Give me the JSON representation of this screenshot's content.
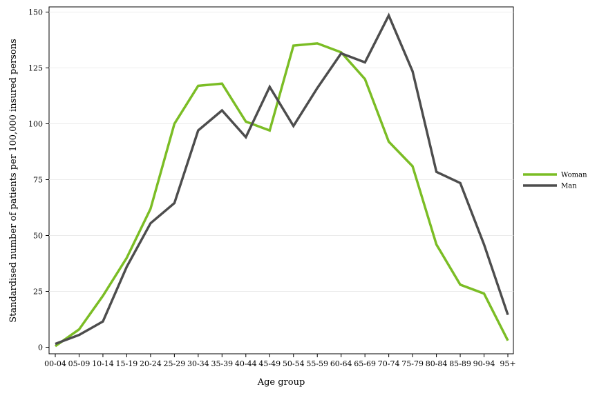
{
  "chart_data": {
    "type": "line",
    "title": "",
    "xlabel": "Age group",
    "ylabel": "Standardised number of patients per 100,000 insured persons",
    "categories": [
      "00-04",
      "05-09",
      "10-14",
      "15-19",
      "20-24",
      "25-29",
      "30-34",
      "35-39",
      "40-44",
      "45-49",
      "50-54",
      "55-59",
      "60-64",
      "65-69",
      "70-74",
      "75-79",
      "80-84",
      "85-89",
      "90-94",
      "95+"
    ],
    "ylim": [
      0,
      150
    ],
    "yticks": [
      0,
      25,
      50,
      75,
      100,
      125,
      150
    ],
    "grid": true,
    "legend_position": "right",
    "series": [
      {
        "name": "Woman",
        "color": "#7bbd25",
        "values": [
          0.5,
          8,
          23,
          40,
          62,
          100,
          117,
          118,
          101,
          97,
          135,
          136,
          132,
          120,
          92,
          81,
          46,
          28,
          24,
          3
        ]
      },
      {
        "name": "Man",
        "color": "#4d4d4d",
        "values": [
          1.5,
          5.5,
          11.5,
          36,
          55.5,
          64.5,
          97,
          106,
          94,
          116.5,
          99,
          116,
          131.5,
          127.5,
          148.5,
          123.5,
          78.5,
          73.5,
          46,
          14.5
        ]
      }
    ]
  }
}
